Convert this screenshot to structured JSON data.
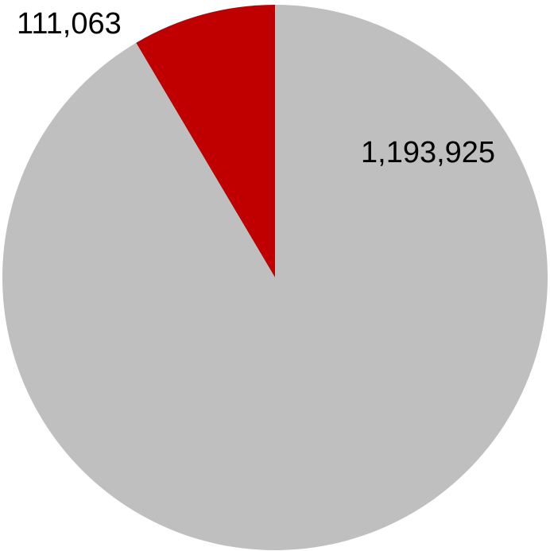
{
  "chart_data": {
    "type": "pie",
    "categories": [
      "",
      ""
    ],
    "values": [
      111063,
      1193925
    ],
    "data_labels": [
      "111,063",
      "1,193,925"
    ],
    "colors": [
      "#c00000",
      "#bfbfbf"
    ],
    "start_angle_deg": 0,
    "direction": "counterclockwise",
    "legend": "none"
  }
}
